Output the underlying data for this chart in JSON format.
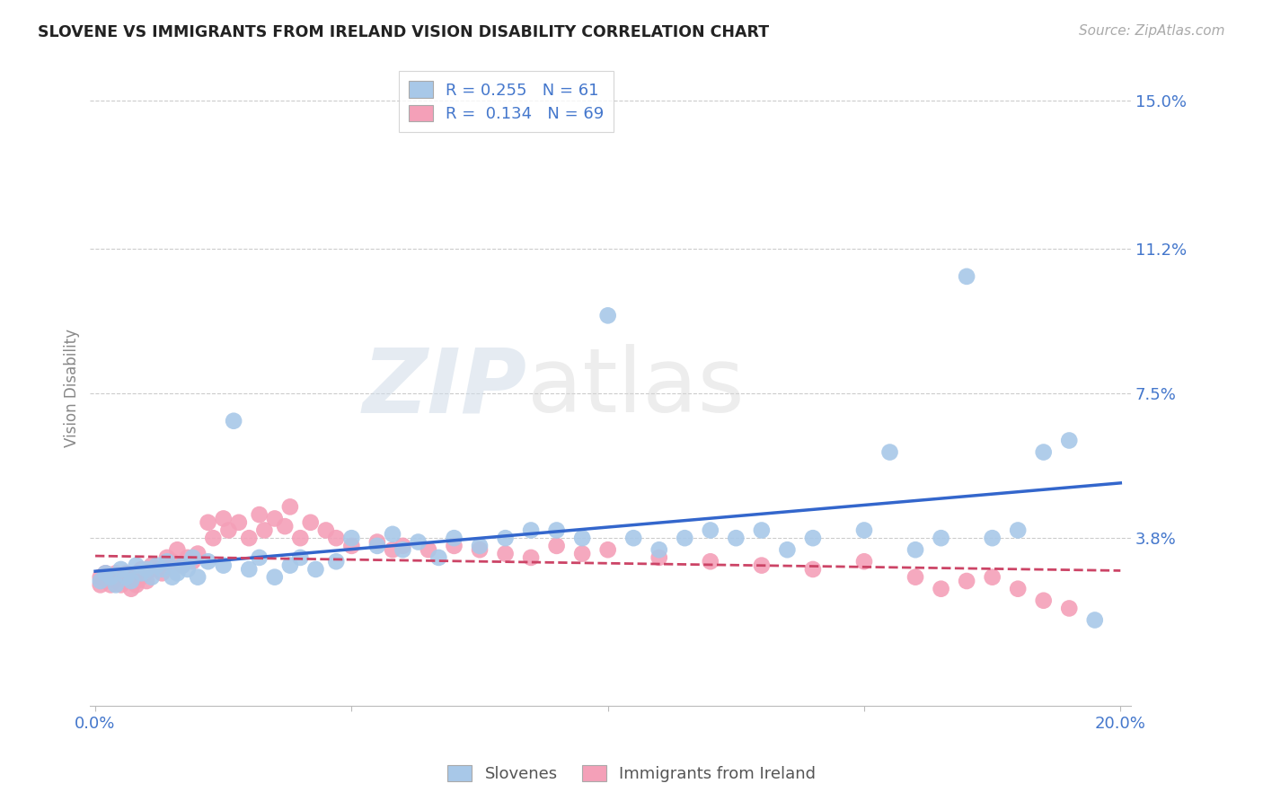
{
  "title": "SLOVENE VS IMMIGRANTS FROM IRELAND VISION DISABILITY CORRELATION CHART",
  "source": "Source: ZipAtlas.com",
  "ylabel": "Vision Disability",
  "blue_R": 0.255,
  "blue_N": 61,
  "pink_R": 0.134,
  "pink_N": 69,
  "blue_color": "#a8c8e8",
  "pink_color": "#f4a0b8",
  "blue_line_color": "#3366cc",
  "pink_line_color": "#cc4466",
  "background_color": "#ffffff",
  "grid_color": "#cccccc",
  "title_color": "#222222",
  "axis_label_color": "#4477cc",
  "watermark": "ZIPatlas",
  "xlim": [
    0.0,
    0.2
  ],
  "ylim": [
    0.0,
    0.155
  ],
  "ytick_positions": [
    0.038,
    0.075,
    0.112,
    0.15
  ],
  "ytick_labels": [
    "3.8%",
    "7.5%",
    "11.2%",
    "15.0%"
  ],
  "xtick_positions": [
    0.0,
    0.05,
    0.1,
    0.15,
    0.2
  ],
  "xtick_labels": [
    "0.0%",
    "",
    "",
    "",
    "20.0%"
  ],
  "blue_x": [
    0.001,
    0.002,
    0.003,
    0.004,
    0.005,
    0.006,
    0.007,
    0.008,
    0.009,
    0.01,
    0.011,
    0.012,
    0.013,
    0.014,
    0.015,
    0.016,
    0.017,
    0.018,
    0.019,
    0.02,
    0.022,
    0.025,
    0.027,
    0.03,
    0.032,
    0.035,
    0.038,
    0.04,
    0.043,
    0.047,
    0.05,
    0.055,
    0.058,
    0.06,
    0.063,
    0.067,
    0.07,
    0.075,
    0.08,
    0.085,
    0.09,
    0.095,
    0.1,
    0.105,
    0.11,
    0.115,
    0.12,
    0.125,
    0.13,
    0.135,
    0.14,
    0.15,
    0.155,
    0.16,
    0.165,
    0.17,
    0.175,
    0.18,
    0.185,
    0.19,
    0.195
  ],
  "blue_y": [
    0.027,
    0.029,
    0.028,
    0.026,
    0.03,
    0.028,
    0.027,
    0.031,
    0.029,
    0.03,
    0.028,
    0.031,
    0.03,
    0.032,
    0.028,
    0.029,
    0.031,
    0.03,
    0.033,
    0.028,
    0.032,
    0.031,
    0.068,
    0.03,
    0.033,
    0.028,
    0.031,
    0.033,
    0.03,
    0.032,
    0.038,
    0.036,
    0.039,
    0.035,
    0.037,
    0.033,
    0.038,
    0.036,
    0.038,
    0.04,
    0.04,
    0.038,
    0.095,
    0.038,
    0.035,
    0.038,
    0.04,
    0.038,
    0.04,
    0.035,
    0.038,
    0.04,
    0.06,
    0.035,
    0.038,
    0.105,
    0.038,
    0.04,
    0.06,
    0.063,
    0.017
  ],
  "pink_x": [
    0.001,
    0.001,
    0.002,
    0.002,
    0.003,
    0.003,
    0.004,
    0.004,
    0.005,
    0.005,
    0.006,
    0.006,
    0.007,
    0.007,
    0.008,
    0.008,
    0.009,
    0.009,
    0.01,
    0.01,
    0.011,
    0.012,
    0.013,
    0.014,
    0.015,
    0.016,
    0.017,
    0.018,
    0.019,
    0.02,
    0.022,
    0.023,
    0.025,
    0.026,
    0.028,
    0.03,
    0.032,
    0.033,
    0.035,
    0.037,
    0.038,
    0.04,
    0.042,
    0.045,
    0.047,
    0.05,
    0.055,
    0.058,
    0.06,
    0.065,
    0.07,
    0.075,
    0.08,
    0.085,
    0.09,
    0.095,
    0.1,
    0.11,
    0.12,
    0.13,
    0.14,
    0.15,
    0.16,
    0.165,
    0.17,
    0.175,
    0.18,
    0.185,
    0.19
  ],
  "pink_y": [
    0.026,
    0.028,
    0.027,
    0.029,
    0.028,
    0.026,
    0.027,
    0.029,
    0.026,
    0.028,
    0.029,
    0.027,
    0.025,
    0.028,
    0.027,
    0.026,
    0.028,
    0.03,
    0.027,
    0.029,
    0.031,
    0.03,
    0.029,
    0.033,
    0.032,
    0.035,
    0.031,
    0.033,
    0.032,
    0.034,
    0.042,
    0.038,
    0.043,
    0.04,
    0.042,
    0.038,
    0.044,
    0.04,
    0.043,
    0.041,
    0.046,
    0.038,
    0.042,
    0.04,
    0.038,
    0.036,
    0.037,
    0.035,
    0.036,
    0.035,
    0.036,
    0.035,
    0.034,
    0.033,
    0.036,
    0.034,
    0.035,
    0.033,
    0.032,
    0.031,
    0.03,
    0.032,
    0.028,
    0.025,
    0.027,
    0.028,
    0.025,
    0.022,
    0.02
  ]
}
